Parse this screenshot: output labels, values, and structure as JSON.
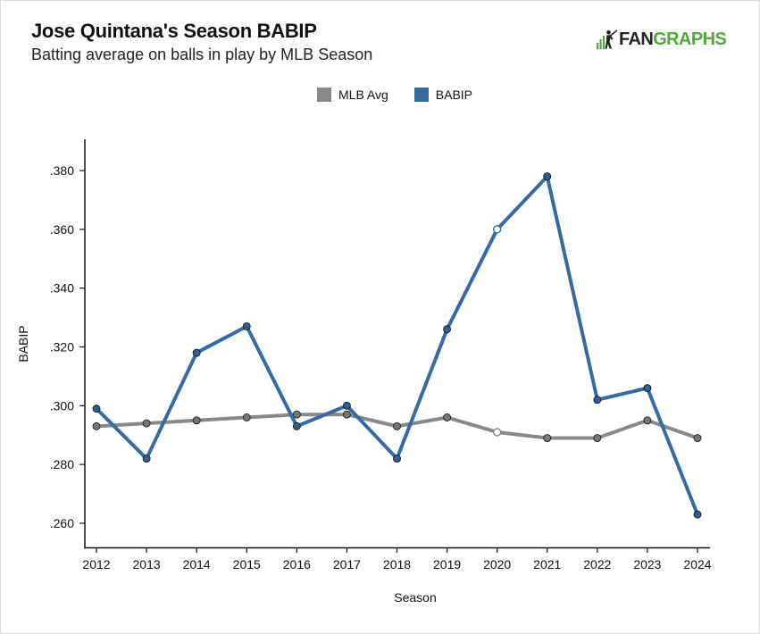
{
  "title": "Jose Quintana's Season BABIP",
  "subtitle": "Batting average on balls in play by MLB Season",
  "brand": {
    "text_dark": "FAN",
    "text_green": "GRAPHS",
    "icon": "fangraphs-logo-icon",
    "color_green": "#52a83a",
    "color_dark": "#222222"
  },
  "chart_data": {
    "type": "line",
    "title": "Jose Quintana's Season BABIP",
    "subtitle": "Batting average on balls in play by MLB Season",
    "xlabel": "Season",
    "ylabel": "BABIP",
    "categories": [
      "2012",
      "2013",
      "2014",
      "2015",
      "2016",
      "2017",
      "2018",
      "2019",
      "2020",
      "2021",
      "2022",
      "2023",
      "2024"
    ],
    "ylim": [
      0.25,
      0.391
    ],
    "yticks": [
      0.26,
      0.28,
      0.3,
      0.32,
      0.34,
      0.36,
      0.38
    ],
    "ytick_labels": [
      ".260",
      ".280",
      ".300",
      ".320",
      ".340",
      ".360",
      ".380"
    ],
    "grid": false,
    "legend_position": "top-center",
    "series": [
      {
        "name": "MLB Avg",
        "color": "#888888",
        "marker_color": "#777777",
        "values": [
          0.293,
          0.294,
          0.295,
          0.296,
          0.297,
          0.297,
          0.293,
          0.296,
          0.291,
          0.289,
          0.289,
          0.295,
          0.289
        ],
        "hollow_points": [
          8
        ]
      },
      {
        "name": "BABIP",
        "color": "#356ba3",
        "marker_color": "#2f5f93",
        "values": [
          0.299,
          0.282,
          0.318,
          0.327,
          0.293,
          0.3,
          0.282,
          0.326,
          0.36,
          0.378,
          0.302,
          0.306,
          0.263
        ],
        "hollow_points": [
          8
        ]
      }
    ]
  }
}
